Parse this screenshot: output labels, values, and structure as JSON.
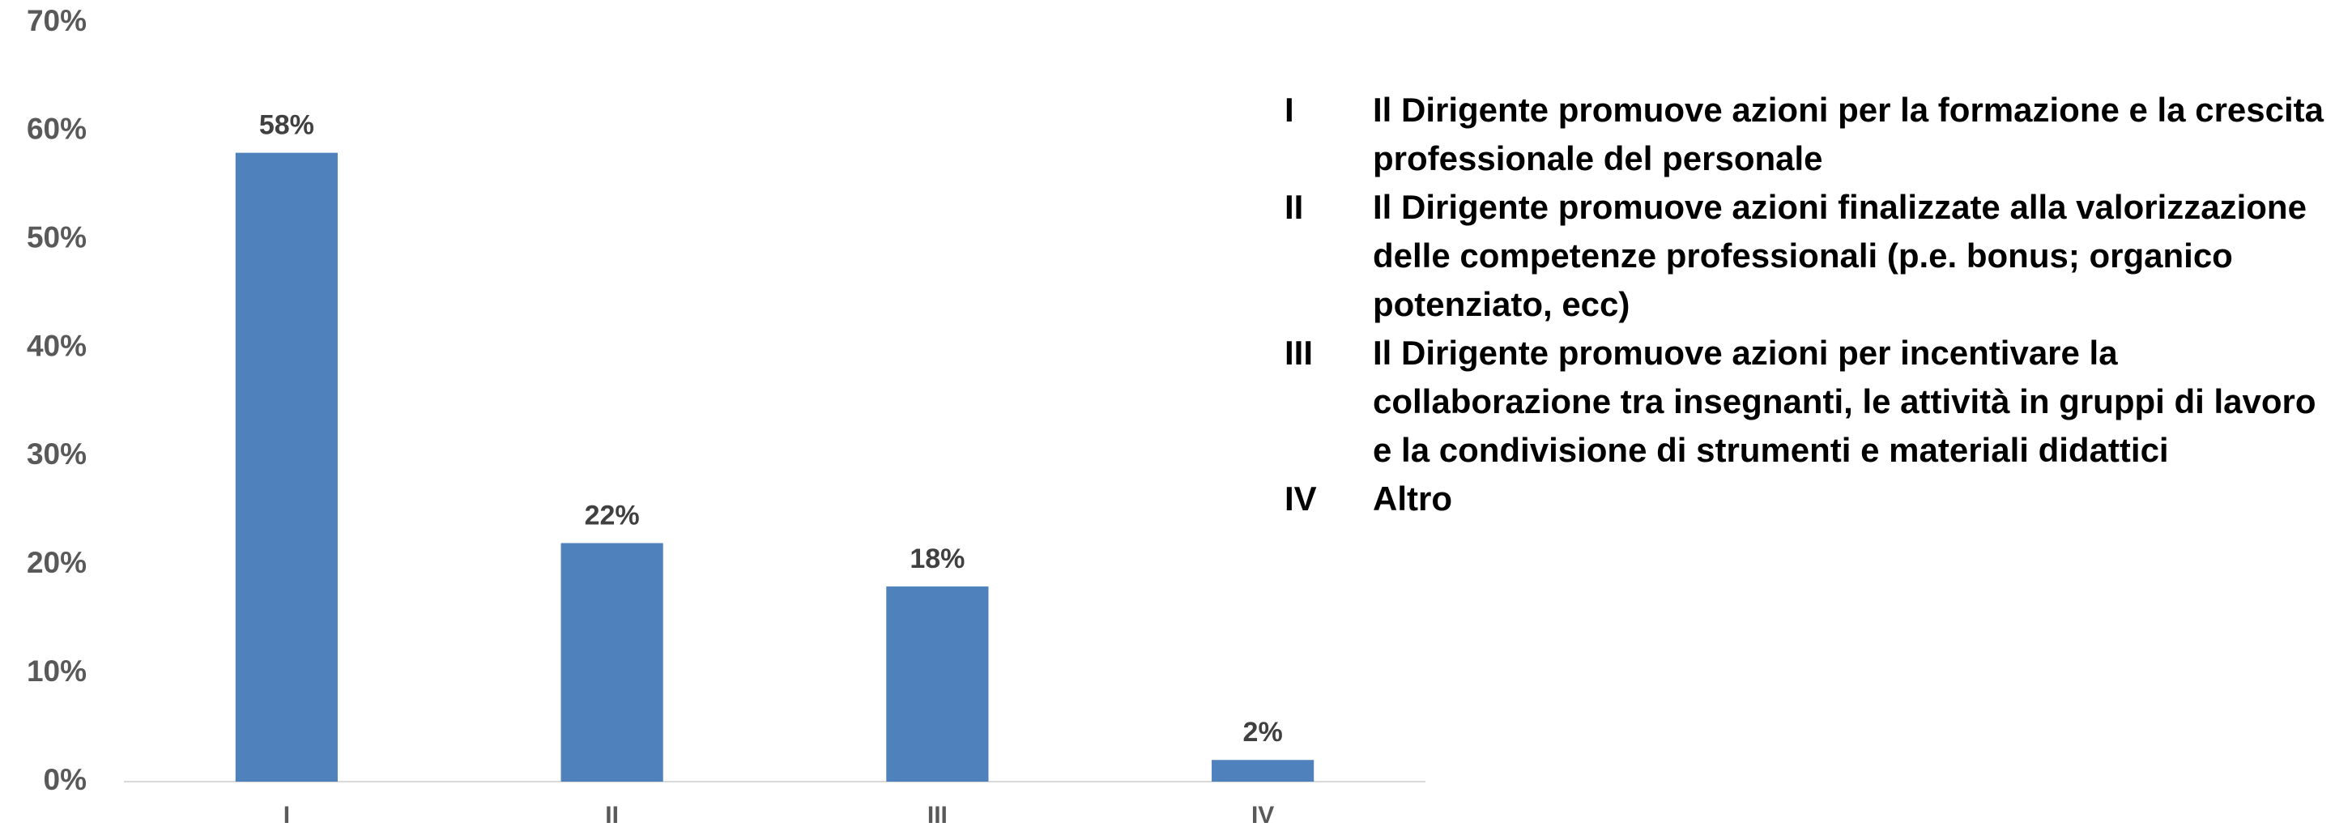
{
  "chart_data": {
    "type": "bar",
    "categories": [
      "I",
      "II",
      "III",
      "IV"
    ],
    "values": [
      58,
      22,
      18,
      2
    ],
    "value_labels": [
      "58%",
      "22%",
      "18%",
      "2%"
    ],
    "color": "#4f81bd",
    "ylim": [
      0,
      70
    ],
    "yticks": [
      {
        "value": 0,
        "label": "0%"
      },
      {
        "value": 10,
        "label": "10%"
      },
      {
        "value": 20,
        "label": "20%"
      },
      {
        "value": 30,
        "label": "30%"
      },
      {
        "value": 40,
        "label": "40%"
      },
      {
        "value": 50,
        "label": "50%"
      },
      {
        "value": 60,
        "label": "60%"
      },
      {
        "value": 70,
        "label": "70%"
      }
    ],
    "grid": false,
    "key": [
      {
        "label": "I",
        "text": "Il Dirigente promuove azioni per la formazione e la crescita professionale del personale"
      },
      {
        "label": "II",
        "text": "Il Dirigente promuove azioni finalizzate alla valorizzazione delle competenze professionali (p.e. bonus; organico potenziato, ecc)"
      },
      {
        "label": "III",
        "text": "Il Dirigente promuove azioni per incentivare la collaborazione tra insegnanti, le attività in gruppi di lavoro e la condivisione di strumenti e materiali didattici"
      },
      {
        "label": "IV",
        "text": "Altro"
      }
    ]
  }
}
